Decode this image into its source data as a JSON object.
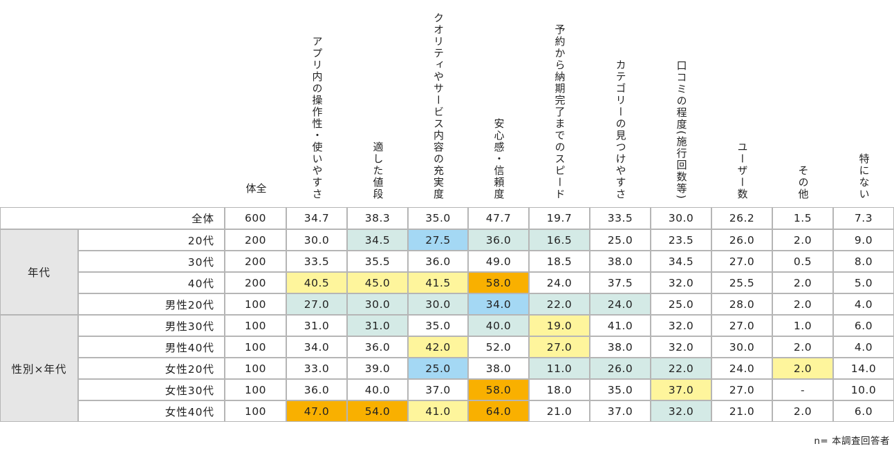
{
  "chart_data": {
    "type": "table",
    "columns": [
      "全\n体",
      "アプリ内の操作性・使いやすさ",
      "適した値段",
      "クオリティやサービス内容の充実度",
      "安心感・信頼度",
      "予約から納期完了までのスピード",
      "カテゴリーの見つけやすさ",
      "口コミの程度(施行回数等)",
      "ユーザー数",
      "その他",
      "特にない"
    ],
    "groups": [
      {
        "label": "",
        "rows": [
          0
        ]
      },
      {
        "label": "年代",
        "rows": [
          1,
          2,
          3,
          4
        ]
      },
      {
        "label": "性別×年代",
        "rows": [
          5,
          6,
          7,
          8,
          9
        ]
      }
    ],
    "rows": [
      {
        "label": "全体",
        "values": [
          "600",
          "34.7",
          "38.3",
          "35.0",
          "47.7",
          "19.7",
          "33.5",
          "30.0",
          "26.2",
          "1.5",
          "7.3"
        ]
      },
      {
        "label": "20代",
        "values": [
          "200",
          "30.0",
          "34.5",
          "27.5",
          "36.0",
          "16.5",
          "25.0",
          "23.5",
          "26.0",
          "2.0",
          "9.0"
        ]
      },
      {
        "label": "30代",
        "values": [
          "200",
          "33.5",
          "35.5",
          "36.0",
          "49.0",
          "18.5",
          "38.0",
          "34.5",
          "27.0",
          "0.5",
          "8.0"
        ]
      },
      {
        "label": "40代",
        "values": [
          "200",
          "40.5",
          "45.0",
          "41.5",
          "58.0",
          "24.0",
          "37.5",
          "32.0",
          "25.5",
          "2.0",
          "5.0"
        ]
      },
      {
        "label": "男性20代",
        "values": [
          "100",
          "27.0",
          "30.0",
          "30.0",
          "34.0",
          "22.0",
          "24.0",
          "25.0",
          "28.0",
          "2.0",
          "4.0"
        ]
      },
      {
        "label": "男性30代",
        "values": [
          "100",
          "31.0",
          "31.0",
          "35.0",
          "40.0",
          "19.0",
          "41.0",
          "32.0",
          "27.0",
          "1.0",
          "6.0"
        ]
      },
      {
        "label": "男性40代",
        "values": [
          "100",
          "34.0",
          "36.0",
          "42.0",
          "52.0",
          "27.0",
          "38.0",
          "32.0",
          "30.0",
          "2.0",
          "4.0"
        ]
      },
      {
        "label": "女性20代",
        "values": [
          "100",
          "33.0",
          "39.0",
          "25.0",
          "38.0",
          "11.0",
          "26.0",
          "22.0",
          "24.0",
          "2.0",
          "14.0"
        ]
      },
      {
        "label": "女性30代",
        "values": [
          "100",
          "36.0",
          "40.0",
          "37.0",
          "58.0",
          "18.0",
          "35.0",
          "37.0",
          "27.0",
          "-",
          "10.0"
        ]
      },
      {
        "label": "女性40代",
        "values": [
          "100",
          "47.0",
          "54.0",
          "41.0",
          "64.0",
          "21.0",
          "37.0",
          "32.0",
          "21.0",
          "2.0",
          "6.0"
        ]
      }
    ],
    "highlights": [
      "..........",
      "..cBcc....",
      "..........",
      ".yyyO.....",
      ".cccBcc...",
      "..c.cy....",
      "...y.y....",
      "...B.ccc.y",
      "....O..y..",
      ".OOyO..c.."
    ],
    "highlight_colors": {
      "c": "#d4eae6",
      "B": "#a4d8f4",
      "y": "#fef59c",
      "O": "#f9b000"
    },
    "note": "n= 本調査回答者"
  }
}
